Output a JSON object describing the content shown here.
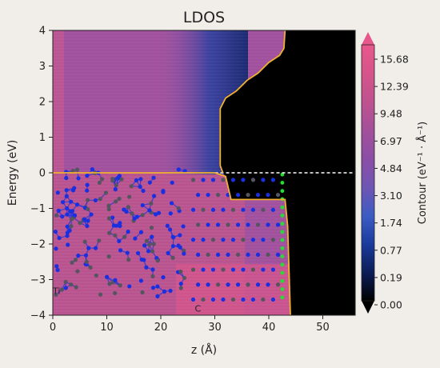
{
  "chart_data": {
    "type": "heatmap",
    "title": "LDOS",
    "xlabel": "z (Å)",
    "ylabel": "Energy (eV)",
    "xlim": [
      0,
      56
    ],
    "ylim": [
      -4,
      4
    ],
    "x_ticks": [
      0,
      10,
      20,
      30,
      40,
      50
    ],
    "y_ticks": [
      -4,
      -3,
      -2,
      -1,
      0,
      1,
      2,
      3,
      4
    ],
    "fermi_level_ev": 0,
    "colorbar": {
      "label": "Contour (eV⁻¹ · Å⁻¹)",
      "ticks": [
        "0.00",
        "0.19",
        "0.77",
        "1.74",
        "3.10",
        "4.84",
        "6.97",
        "9.48",
        "12.39",
        "15.68"
      ],
      "colors": [
        "#000000",
        "#0a1a50",
        "#1a3a9c",
        "#3a5cc4",
        "#6e56b4",
        "#8a4ea6",
        "#a4509a",
        "#bf528f",
        "#d6548a",
        "#e8578c"
      ]
    },
    "band_edges": {
      "lower": [
        [
          0,
          0
        ],
        [
          24,
          0
        ],
        [
          30,
          0
        ],
        [
          32,
          -0.1
        ],
        [
          33,
          -0.75
        ],
        [
          43,
          -0.75
        ],
        [
          43.5,
          -1.5
        ],
        [
          44,
          -4
        ]
      ],
      "upper": [
        [
          43,
          4
        ],
        [
          42.8,
          3.5
        ],
        [
          42,
          3.3
        ],
        [
          40,
          3.1
        ],
        [
          38,
          2.8
        ],
        [
          36,
          2.6
        ],
        [
          34,
          2.3
        ],
        [
          32,
          2.1
        ],
        [
          31,
          1.8
        ],
        [
          31,
          0.2
        ],
        [
          31.5,
          0
        ]
      ]
    },
    "inset_labels": [
      {
        "text": "Ti",
        "z": -0.3,
        "e": -3.4
      },
      {
        "text": "C",
        "z": 26,
        "e": -3.9
      }
    ]
  }
}
